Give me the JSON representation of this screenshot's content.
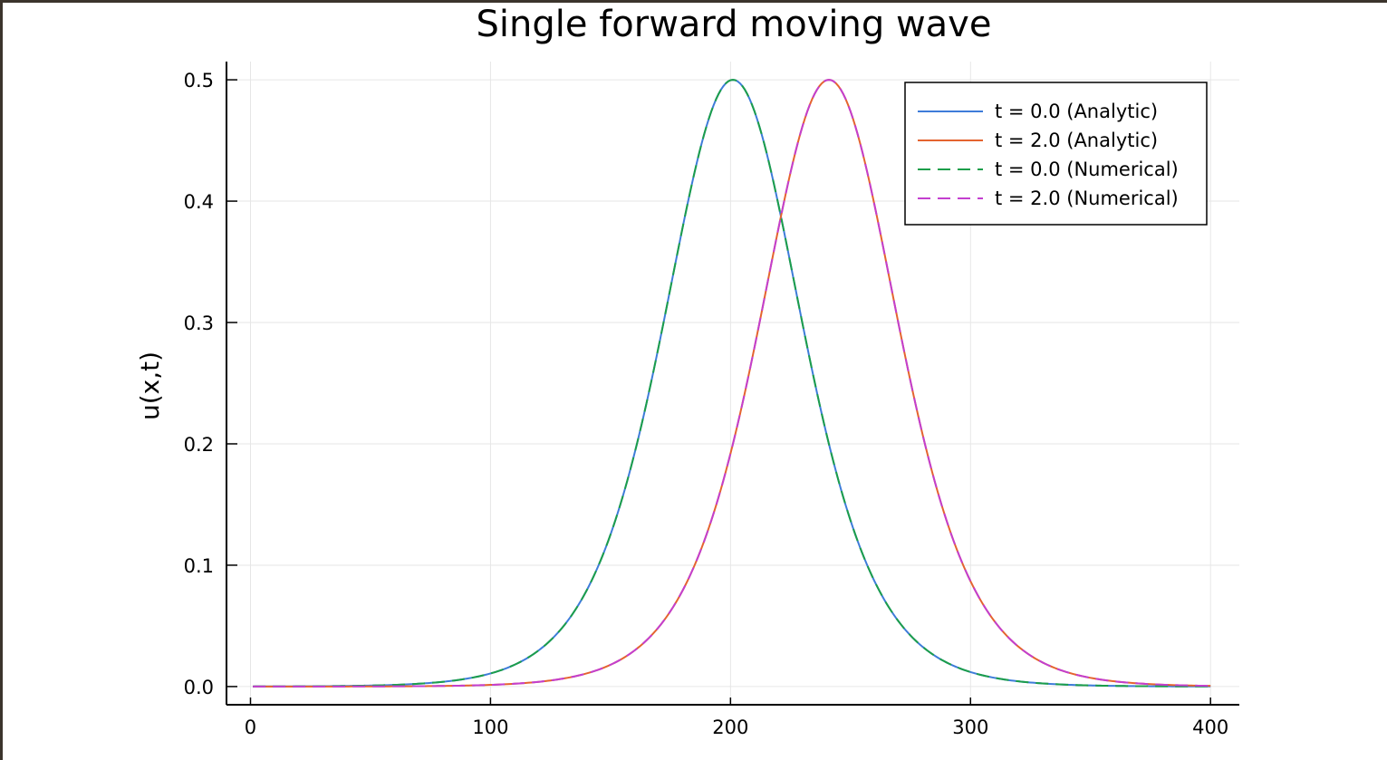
{
  "chart_data": {
    "type": "line",
    "title": "Single forward moving wave",
    "xlabel": "",
    "ylabel": "u(x,t)",
    "xlim": [
      -10,
      412
    ],
    "ylim": [
      -0.015,
      0.515
    ],
    "x_ticks": [
      0,
      100,
      200,
      300,
      400
    ],
    "y_ticks": [
      0.0,
      0.1,
      0.2,
      0.3,
      0.4,
      0.5
    ],
    "x_tick_labels": [
      "0",
      "100",
      "200",
      "300",
      "400"
    ],
    "y_tick_labels": [
      "0.0",
      "0.1",
      "0.2",
      "0.3",
      "0.4",
      "0.5"
    ],
    "grid": true,
    "legend_position": "top-right",
    "curve": {
      "form": "0.5*sech^2(k*(x - center))",
      "amplitude": 0.5,
      "k": 0.0258,
      "x_min": 1,
      "x_max": 400
    },
    "series": [
      {
        "name": "t = 0.0 (Analytic)",
        "center": 201,
        "color": "#3e7cd9",
        "dash": "solid"
      },
      {
        "name": "t = 2.0 (Analytic)",
        "center": 241,
        "color": "#e4642f",
        "dash": "solid"
      },
      {
        "name": "t = 0.0 (Numerical)",
        "center": 201,
        "color": "#1c9e4a",
        "dash": "dashed"
      },
      {
        "name": "t = 2.0 (Numerical)",
        "center": 241,
        "color": "#c33fcf",
        "dash": "dashed"
      }
    ]
  }
}
